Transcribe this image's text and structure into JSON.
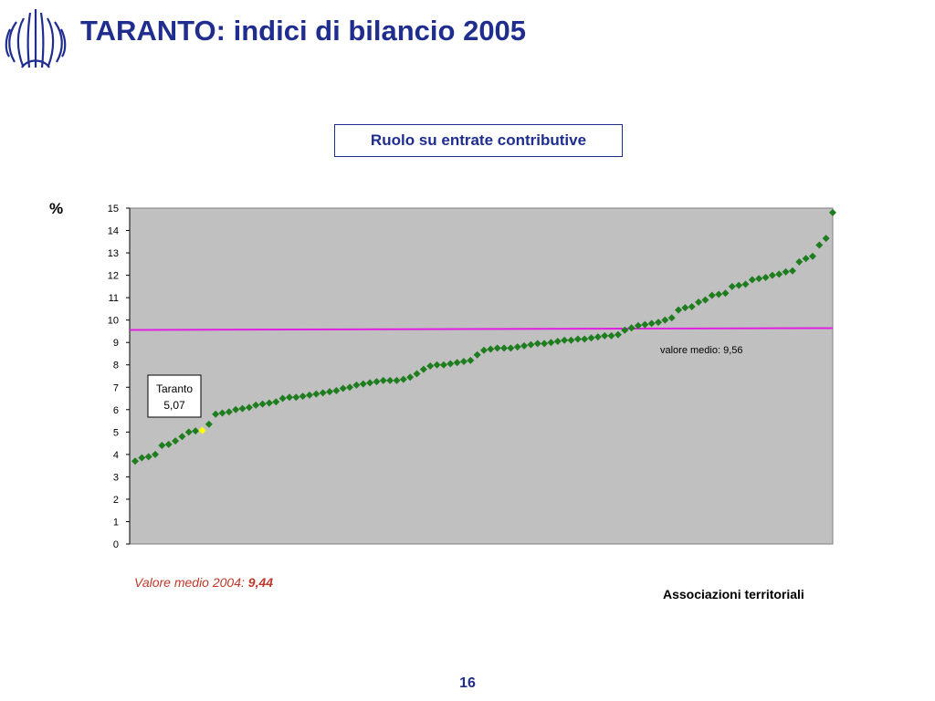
{
  "slide": {
    "title": "TARANTO: indici di bilancio 2005",
    "subtitle": "Ruolo su entrate contributive",
    "unit": "%",
    "previous_average_label": "Valore medio 2004: ",
    "previous_average_value": "9,44",
    "x_caption": "Associazioni territoriali",
    "page_number": "16",
    "colors": {
      "title": "#1f2d8f",
      "plot_background": "#c0c0c0",
      "points": "#1e7d1e",
      "highlight_point": "#ffff00",
      "average_line": "#e020e0",
      "previous_average": "#c0392b"
    }
  },
  "chart_data": {
    "type": "scatter",
    "ylim": [
      0,
      15
    ],
    "yticks": [
      "0",
      "1",
      "2",
      "3",
      "4",
      "5",
      "6",
      "7",
      "8",
      "9",
      "10",
      "11",
      "12",
      "13",
      "14",
      "15"
    ],
    "grid": false,
    "average": {
      "value": 9.56,
      "label": "valore medio: 9,56"
    },
    "highlight": {
      "label": "Taranto",
      "value_label": "5,07",
      "value": 5.07,
      "rank": 11
    },
    "values": [
      3.7,
      3.85,
      3.9,
      4.0,
      4.4,
      4.45,
      4.6,
      4.8,
      5.0,
      5.05,
      5.07,
      5.35,
      5.8,
      5.85,
      5.9,
      6.0,
      6.05,
      6.1,
      6.2,
      6.25,
      6.3,
      6.35,
      6.5,
      6.55,
      6.55,
      6.6,
      6.65,
      6.7,
      6.75,
      6.8,
      6.85,
      6.95,
      7.0,
      7.1,
      7.15,
      7.2,
      7.25,
      7.3,
      7.3,
      7.3,
      7.35,
      7.45,
      7.6,
      7.8,
      7.95,
      8.0,
      8.0,
      8.05,
      8.1,
      8.15,
      8.2,
      8.45,
      8.65,
      8.7,
      8.75,
      8.75,
      8.75,
      8.8,
      8.85,
      8.9,
      8.95,
      8.95,
      9.0,
      9.05,
      9.1,
      9.1,
      9.15,
      9.15,
      9.2,
      9.25,
      9.3,
      9.3,
      9.35,
      9.55,
      9.65,
      9.75,
      9.8,
      9.85,
      9.9,
      10.0,
      10.1,
      10.45,
      10.55,
      10.6,
      10.8,
      10.9,
      11.1,
      11.15,
      11.2,
      11.5,
      11.55,
      11.6,
      11.8,
      11.85,
      11.9,
      12.0,
      12.05,
      12.15,
      12.2,
      12.6,
      12.75,
      12.85,
      13.35,
      13.65,
      14.8
    ]
  }
}
